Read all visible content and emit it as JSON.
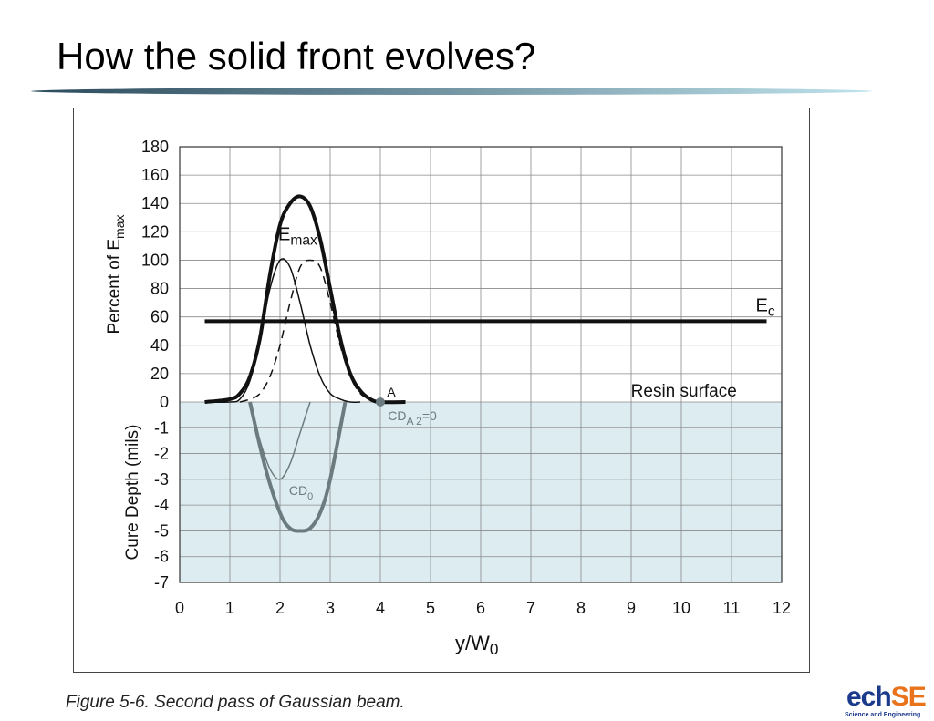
{
  "slide": {
    "title": "How the solid front evolves?",
    "caption": "Figure 5-6. Second pass of Gaussian beam."
  },
  "logo": {
    "main_dark": "ech",
    "main_accent": "SE",
    "subtitle": "Science and Engineering"
  },
  "colors": {
    "title_rule_start": "#2b4a5c",
    "title_rule_end": "#bfe3ec",
    "cure_region": "#dcecf1",
    "grid": "#8a8a8a",
    "cure_curve": "#6b7b7f"
  },
  "chart_data": {
    "type": "line",
    "xlabel": "y/W0",
    "ylabel_upper": "Percent of Emax",
    "ylabel_lower": "Cure Depth (mils)",
    "xlim": [
      0,
      12
    ],
    "ylim_upper": [
      0,
      180
    ],
    "ylim_lower": [
      -7,
      0
    ],
    "x_ticks": [
      "0",
      "1",
      "2",
      "3",
      "4",
      "5",
      "6",
      "7",
      "8",
      "9",
      "10",
      "11",
      "12"
    ],
    "y_ticks_upper": [
      "180",
      "160",
      "140",
      "120",
      "100",
      "80",
      "60",
      "40",
      "20",
      "0"
    ],
    "y_ticks_lower": [
      "-1",
      "-2",
      "-3",
      "-4",
      "-5",
      "-6",
      "-7"
    ],
    "grid": true,
    "series": [
      {
        "style": "thin-solid",
        "x": [
          0.5,
          1.0,
          1.2,
          1.4,
          1.6,
          1.8,
          2.0,
          2.2,
          2.4,
          2.6,
          2.8,
          3.0,
          3.2,
          3.4,
          3.6
        ],
        "values": [
          0,
          0,
          2,
          15,
          45,
          80,
          100,
          95,
          70,
          40,
          18,
          6,
          2,
          0,
          0
        ]
      },
      {
        "style": "dashed",
        "x": [
          1.2,
          1.4,
          1.6,
          1.8,
          2.0,
          2.2,
          2.4,
          2.6,
          2.8,
          3.0,
          3.2,
          3.4,
          3.6,
          3.8,
          4.0
        ],
        "values": [
          0,
          2,
          6,
          18,
          40,
          70,
          95,
          100,
          95,
          70,
          40,
          18,
          6,
          2,
          0
        ]
      },
      {
        "name": "Emax",
        "style": "thick-solid",
        "x": [
          0.5,
          1.0,
          1.2,
          1.4,
          1.6,
          1.8,
          2.0,
          2.2,
          2.4,
          2.6,
          2.8,
          3.0,
          3.2,
          3.4,
          3.6,
          3.8,
          4.0,
          4.5
        ],
        "values": [
          0,
          2,
          6,
          18,
          45,
          90,
          125,
          140,
          145,
          138,
          115,
          80,
          45,
          20,
          8,
          2,
          0,
          0
        ]
      }
    ],
    "threshold": {
      "label": "Ec",
      "value": 57,
      "x": [
        0.5,
        11.7
      ]
    },
    "cure_depth_series": [
      {
        "name": "CD0",
        "style": "thin",
        "x": [
          1.4,
          1.6,
          1.8,
          2.0,
          2.2,
          2.4,
          2.6
        ],
        "values": [
          0,
          -1.5,
          -2.6,
          -3.0,
          -2.4,
          -1.2,
          0
        ]
      },
      {
        "style": "thick",
        "x": [
          1.4,
          1.7,
          2.0,
          2.2,
          2.4,
          2.6,
          2.8,
          3.0,
          3.3
        ],
        "values": [
          0,
          -2.5,
          -4.3,
          -4.9,
          -5.0,
          -4.9,
          -4.3,
          -3.0,
          0
        ]
      }
    ],
    "annotations": {
      "emax_label": "Emax",
      "ec_label": "Ec",
      "resin_surface": "Resin surface",
      "point_a": "A",
      "point_a_x": 4.0,
      "cd_a2": "CDA 2=0",
      "cd0": "CD0"
    }
  }
}
